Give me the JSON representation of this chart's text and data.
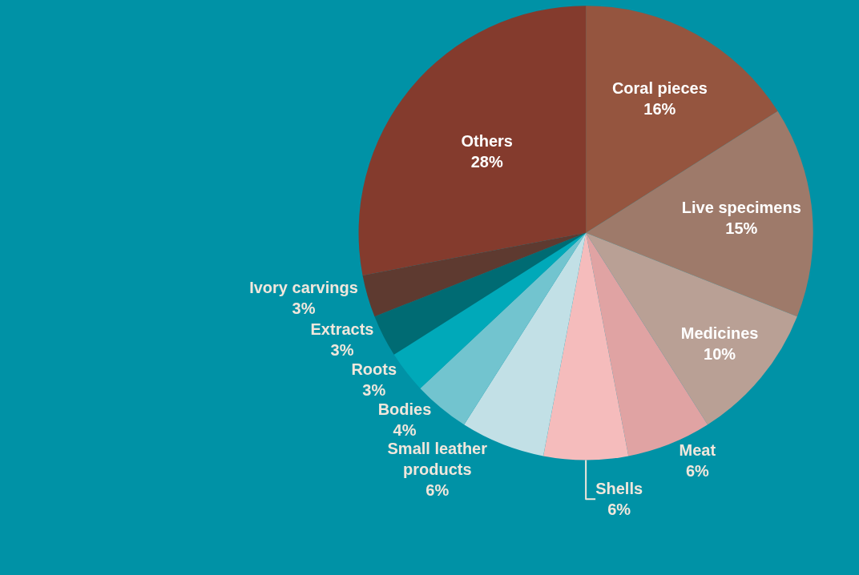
{
  "chart_data": {
    "type": "pie",
    "categories": [
      "Coral pieces",
      "Live specimens",
      "Medicines",
      "Meat",
      "Shells",
      "Small leather products",
      "Bodies",
      "Roots",
      "Extracts",
      "Ivory carvings",
      "Others"
    ],
    "values": [
      16,
      15,
      10,
      6,
      6,
      6,
      4,
      3,
      3,
      3,
      28
    ],
    "colors": [
      "#95553f",
      "#9e7a6a",
      "#b9a095",
      "#e0a3a3",
      "#f5bcbc",
      "#c2e0e6",
      "#72c4cf",
      "#00a9b9",
      "#006b73",
      "#5e3a30",
      "#843b2d"
    ],
    "value_labels": [
      "16%",
      "15%",
      "10%",
      "6%",
      "6%",
      "6%",
      "4%",
      "3%",
      "3%",
      "3%",
      "28%"
    ],
    "legend": false
  }
}
